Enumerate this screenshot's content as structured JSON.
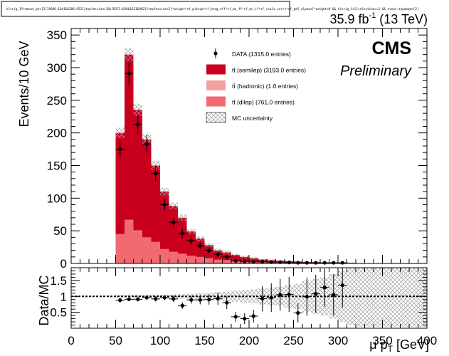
{
  "header": {
    "cut_string": "eltrig_Ifremuon_pt>[2]19686:1&h1&6208.9521]tepfession>1&h70171:016&1621&9823]tepfession>2]*weight*xf_piteup*sf_btag_eff*sf_mu_ff*sf_mu_if*sf_scale_corrs*sf_pdf_alphas]*weight>0 && eltrig_fullselection>=1 && event.topdaqon[2]",
    "lumi_value": "35.9 fb",
    "lumi_exp": "-1",
    "lumi_energy": " (13 TeV)"
  },
  "labels": {
    "experiment": "CMS",
    "status": "Preliminary",
    "ratio_ylabel": "Data/MC",
    "xlabel_main": "μ p",
    "xlabel_sub": "T",
    "xlabel_unit": " [GeV]"
  },
  "colors": {
    "semilep": "#c8001e",
    "hadronic": "#f4a0a0",
    "dilep": "#f06a70",
    "data": "#000000",
    "unc_hatch": "#9a9a9a"
  },
  "chart_data": [
    {
      "type": "bar",
      "stacked": true,
      "ylabel": "Events/10 GeV",
      "xlim": [
        0,
        400
      ],
      "ylim": [
        0,
        360
      ],
      "x_ticks": [
        0,
        50,
        100,
        150,
        200,
        250,
        300,
        350,
        400
      ],
      "y_ticks": [
        0,
        50,
        100,
        150,
        200,
        250,
        300,
        350
      ],
      "bin_width": 10,
      "bin_low_edges": [
        50,
        60,
        70,
        80,
        90,
        100,
        110,
        120,
        130,
        140,
        150,
        160,
        170,
        180,
        190,
        200,
        210,
        220,
        230,
        240,
        250,
        260,
        270,
        280,
        290,
        300,
        310,
        320,
        330,
        340,
        350,
        360,
        370,
        380,
        390
      ],
      "legend_position": "top-right",
      "legend": [
        {
          "key": "data",
          "label": "DATA (1315.0 entries)"
        },
        {
          "key": "semilep",
          "label": "tt̄ (semilep) (3193.0 entries)"
        },
        {
          "key": "hadronic",
          "label": "tt̄ (hadronic) (1.0 entries)"
        },
        {
          "key": "dilep",
          "label": "tt̄ (dilep) (761.0 entries)"
        },
        {
          "key": "unc",
          "label": "MC uncertainty"
        }
      ],
      "series": [
        {
          "key": "dilep",
          "name": "tt̄ (dilep) (761.0 entries)",
          "values": [
            45,
            67,
            50,
            40,
            33,
            22,
            18,
            15,
            12,
            10,
            8,
            6,
            5,
            4,
            3,
            3,
            2,
            2,
            1.5,
            1.5,
            1,
            1,
            1,
            0.5,
            0.5,
            0.5,
            0.5,
            0.3,
            0.3,
            0.2,
            0.2,
            0.2,
            0.2,
            0.2,
            0.2
          ]
        },
        {
          "key": "hadronic",
          "name": "tt̄ (hadronic) (1.0 entries)",
          "values": [
            0,
            0,
            0.5,
            0,
            0,
            0,
            0,
            0,
            0,
            0,
            0,
            0,
            0,
            0,
            0,
            0,
            0,
            0,
            0,
            0,
            0,
            0,
            0,
            0,
            0,
            0,
            0,
            0,
            0,
            0,
            0,
            0,
            0,
            0,
            0
          ]
        },
        {
          "key": "semilep",
          "name": "tt̄ (semilep) (3193.0 entries)",
          "values": [
            155,
            253,
            185,
            150,
            117,
            88,
            70,
            55,
            37,
            28,
            20,
            14,
            12,
            9,
            7,
            5,
            4,
            3,
            2.5,
            2,
            2,
            1,
            1,
            0.5,
            0.5,
            0.5,
            0.5,
            0.2,
            0.2,
            0.3,
            0.3,
            0.3,
            0.3,
            0.3,
            0.3
          ]
        }
      ],
      "mc_total": [
        200,
        320,
        235,
        190,
        150,
        110,
        88,
        70,
        49,
        38,
        28,
        20,
        17,
        13,
        10,
        8,
        6,
        5,
        4,
        3.5,
        3,
        2,
        2,
        1,
        1,
        1,
        1,
        0.5,
        0.5,
        0.5,
        0.5,
        0.5,
        0.5,
        0.5,
        0.5
      ],
      "mc_unc": [
        8,
        10,
        9,
        8,
        7,
        6,
        5,
        5,
        4,
        4,
        3,
        3,
        3,
        2,
        2,
        2,
        1.5,
        1.5,
        1.5,
        1.2,
        1.2,
        1,
        1,
        0.8,
        0.8,
        0.8,
        0.8,
        0.5,
        0.5,
        0.5,
        0.5,
        0.5,
        0.5,
        0.5,
        0.5
      ],
      "data": {
        "name": "DATA (1315.0 entries)",
        "x": [
          55,
          65,
          75,
          85,
          95,
          105,
          115,
          125,
          135,
          145,
          155,
          165,
          175,
          185,
          195,
          205,
          215,
          225,
          235,
          245,
          255,
          265,
          275,
          285,
          295,
          305
        ],
        "y": [
          175,
          291,
          213,
          183,
          138,
          90,
          63,
          46,
          35,
          27,
          20,
          14,
          10,
          4,
          3,
          2.5,
          2.5,
          2,
          2,
          1.5,
          1,
          1,
          1,
          1,
          1,
          1
        ],
        "yerr": [
          13,
          17,
          15,
          14,
          12,
          9,
          8,
          7,
          6,
          5,
          4.5,
          4,
          3,
          2,
          1.7,
          1.5,
          1.5,
          1.4,
          1.4,
          1.2,
          1,
          1,
          1,
          1,
          1,
          1
        ]
      }
    },
    {
      "type": "scatter",
      "ylabel": "Data/MC",
      "xlabel": "μ p_T [GeV]",
      "xlim": [
        0,
        400
      ],
      "ylim": [
        0,
        1.9
      ],
      "x_ticks": [
        0,
        50,
        100,
        150,
        200,
        250,
        300,
        350,
        400
      ],
      "y_ticks": [
        0.5,
        1,
        1.5
      ],
      "y_tick_labels": [
        "0.5",
        "1",
        "1.5"
      ],
      "reference_line": 1,
      "unc_band": {
        "x_low": [
          50,
          60,
          70,
          80,
          90,
          100,
          110,
          120,
          130,
          140,
          150,
          160,
          170,
          180,
          190,
          200,
          210,
          220,
          230,
          240,
          250,
          260,
          270,
          280,
          290,
          300,
          310,
          320,
          330,
          340,
          350,
          360,
          370,
          380,
          390
        ],
        "half_width": [
          0.04,
          0.04,
          0.04,
          0.04,
          0.05,
          0.05,
          0.06,
          0.07,
          0.08,
          0.1,
          0.11,
          0.13,
          0.15,
          0.18,
          0.2,
          0.22,
          0.25,
          0.28,
          0.3,
          0.35,
          0.4,
          0.5,
          0.55,
          0.6,
          0.7,
          0.8,
          0.9,
          0.95,
          0.95,
          0.95,
          0.95,
          0.95,
          0.95,
          0.95,
          0.95
        ]
      },
      "points": {
        "x": [
          55,
          65,
          75,
          85,
          95,
          105,
          115,
          125,
          135,
          145,
          155,
          165,
          175,
          185,
          195,
          205,
          215,
          225,
          235,
          245,
          255,
          265,
          275,
          285,
          295,
          305
        ],
        "y": [
          0.88,
          0.91,
          0.91,
          0.96,
          0.92,
          0.96,
          0.92,
          0.71,
          0.89,
          0.89,
          0.9,
          0.93,
          0.8,
          0.36,
          0.3,
          0.38,
          0.93,
          0.96,
          1.05,
          1.06,
          0.48,
          0.99,
          1.08,
          1.28,
          1.05,
          1.35
        ],
        "yerr": [
          0.07,
          0.05,
          0.07,
          0.07,
          0.08,
          0.08,
          0.1,
          0.1,
          0.12,
          0.14,
          0.16,
          0.2,
          0.2,
          0.15,
          0.17,
          0.2,
          0.4,
          0.45,
          0.5,
          0.55,
          0.3,
          0.6,
          0.6,
          0.6,
          0.65,
          0.7
        ]
      }
    }
  ]
}
